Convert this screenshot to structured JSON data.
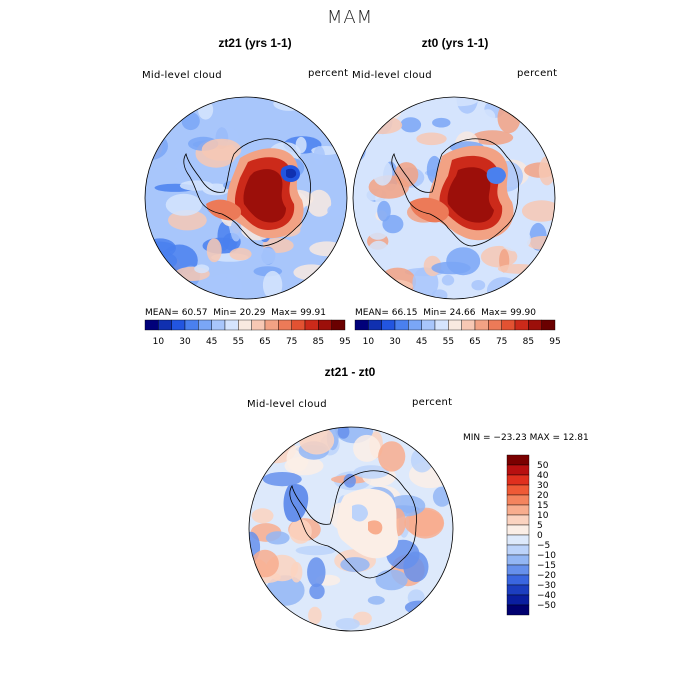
{
  "figure": {
    "title": "MAM"
  },
  "panels": [
    {
      "title": "zt21 (yrs 1-1)",
      "field_label": "Mid-level cloud",
      "units_label": "percent",
      "stats": {
        "mean_label": "MEAN=",
        "mean": "60.57",
        "min_label": "Min=",
        "min": "20.29",
        "max_label": "Max=",
        "max": "99.91"
      }
    },
    {
      "title": "zt0 (yrs 1-1)",
      "field_label": "Mid-level cloud",
      "units_label": "percent",
      "stats": {
        "mean_label": "MEAN=",
        "mean": "66.15",
        "min_label": "Min=",
        "min": "24.66",
        "max_label": "Max=",
        "max": "99.90"
      }
    },
    {
      "title": "zt21 - zt0",
      "field_label": "Mid-level cloud",
      "units_label": "percent",
      "stats_line": "MIN = −23.23 MAX =  12.81"
    }
  ],
  "colorbars": {
    "absolute": {
      "colors": [
        "#00007a",
        "#1030b0",
        "#2255e0",
        "#4a80ee",
        "#7aa6f6",
        "#a8c6fb",
        "#d5e4fd",
        "#f8e9e0",
        "#f7c8b4",
        "#f2a284",
        "#ec7a58",
        "#e25232",
        "#cc2a1a",
        "#9c0f0a",
        "#6a0000"
      ],
      "labels": [
        "10",
        "30",
        "45",
        "55",
        "65",
        "75",
        "85",
        "95"
      ]
    },
    "difference": {
      "colors": [
        "#7a0000",
        "#b81010",
        "#e0301e",
        "#ef5a36",
        "#f4845e",
        "#f8ad8e",
        "#fbd3c0",
        "#fbeee6",
        "#dde9fb",
        "#bcd3fa",
        "#93b6f4",
        "#6690ec",
        "#3a66e0",
        "#1c3ec0",
        "#0a1ea0",
        "#000070"
      ],
      "labels": [
        "50",
        "40",
        "30",
        "20",
        "15",
        "10",
        "5",
        "0",
        "−5",
        "−10",
        "−15",
        "−20",
        "−30",
        "−40",
        "−50"
      ]
    }
  },
  "chart_data": {
    "type": "heatmap",
    "title": "MAM",
    "variable": "Mid-level cloud",
    "units": "percent",
    "projection": "south polar stereographic",
    "maps": [
      {
        "name": "zt21 (yrs 1-1)",
        "mean": 60.57,
        "min": 20.29,
        "max": 99.91,
        "levels": [
          10,
          30,
          45,
          55,
          65,
          75,
          85,
          95
        ]
      },
      {
        "name": "zt0 (yrs 1-1)",
        "mean": 66.15,
        "min": 24.66,
        "max": 99.9,
        "levels": [
          10,
          30,
          45,
          55,
          65,
          75,
          85,
          95
        ]
      },
      {
        "name": "zt21 - zt0",
        "min": -23.23,
        "max": 12.81,
        "levels": [
          -50,
          -40,
          -30,
          -20,
          -15,
          -10,
          -5,
          0,
          5,
          10,
          15,
          20,
          30,
          40,
          50
        ]
      }
    ]
  }
}
